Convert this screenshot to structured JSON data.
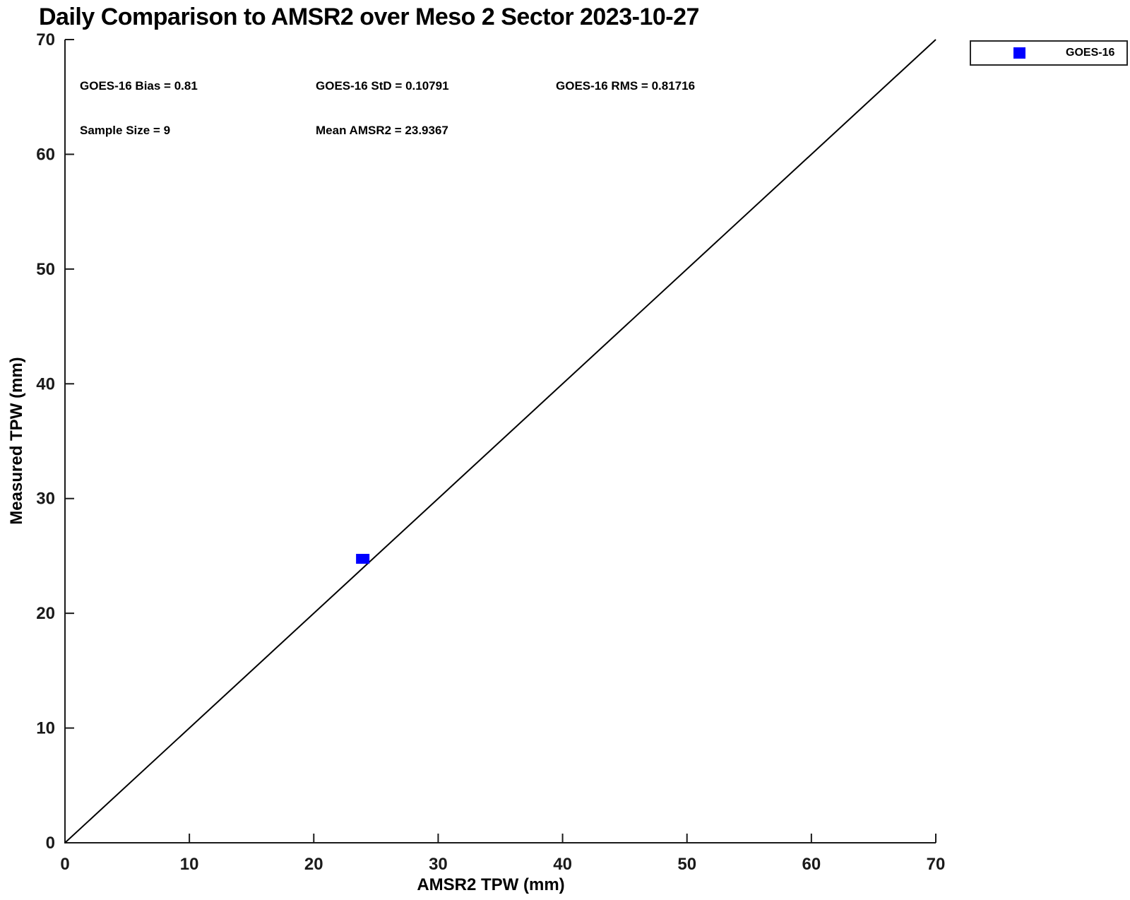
{
  "title": "Daily Comparison to AMSR2 over Meso 2 Sector 2023-10-27",
  "legend": {
    "label": "GOES-16",
    "marker": "square",
    "marker_color": "#0000ff",
    "position": "top-right"
  },
  "chart_data": {
    "type": "scatter",
    "title": "Daily Comparison to AMSR2 over Meso 2 Sector 2023-10-27",
    "xlabel": "AMSR2 TPW (mm)",
    "ylabel": "Measured TPW (mm)",
    "xlim": [
      0,
      70
    ],
    "ylim": [
      0,
      70
    ],
    "x_ticks": [
      0,
      10,
      20,
      30,
      40,
      50,
      60,
      70
    ],
    "y_ticks": [
      0,
      10,
      20,
      30,
      40,
      50,
      60,
      70
    ],
    "grid": false,
    "legend_position": "top-right",
    "series": [
      {
        "name": "GOES-16",
        "marker": "square",
        "color": "#0000ff",
        "points": [
          {
            "x": 23.9367,
            "y": 24.7467
          }
        ],
        "note": "cluster of 9 nearly identical points rendered as one blue square blob"
      }
    ],
    "reference_line": {
      "from": [
        0,
        0
      ],
      "to": [
        70,
        70
      ],
      "color": "#000000",
      "description": "1:1 identity line"
    },
    "annotations": [
      "GOES-16 Bias = 0.81",
      "GOES-16 StD = 0.10791",
      "GOES-16 RMS = 0.81716",
      "Sample Size = 9",
      "Mean AMSR2 = 23.9367"
    ],
    "stats": {
      "bias": 0.81,
      "std": 0.10791,
      "rms": 0.81716,
      "sample_size": 9,
      "mean_amsr2": 23.9367
    },
    "axis_color": "#1a1a1a",
    "background_color": "#ffffff"
  }
}
